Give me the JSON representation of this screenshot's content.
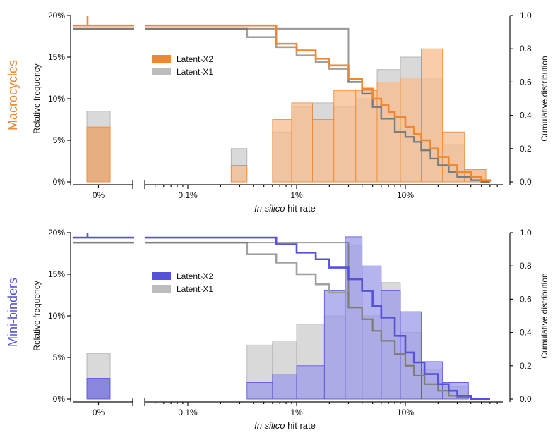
{
  "chart_data": [
    {
      "type": "bar",
      "panel": "top",
      "side_label": "Macrocycles",
      "accent": "#F0862E",
      "accent_fill": "#E8A878",
      "accent_fill_light": "#F7BC8C",
      "ylabel_left": "Relative frequency",
      "ylabel_right": "Cumulative distribution",
      "xlabel_italic": "In silico",
      "xlabel_rest": " hit rate",
      "y_left_ticks": [
        "0%",
        "5%",
        "10%",
        "15%",
        "20%"
      ],
      "y_right_ticks": [
        "0.0",
        "0.2",
        "0.4",
        "0.6",
        "0.8",
        "1.0"
      ],
      "x_ticks": [
        "0.1%",
        "1%",
        "10%"
      ],
      "x_zero_label": "0%",
      "ylim": [
        0,
        20
      ],
      "legend": [
        "Latent-X2",
        "Latent-X1"
      ],
      "zero_bin": {
        "x2": 6.6,
        "x1": 8.5
      },
      "x2_hist": [
        [
          0.25,
          0.35,
          2.0
        ],
        [
          0.6,
          0.9,
          7.5
        ],
        [
          0.9,
          1.4,
          9.5
        ],
        [
          1.4,
          2.2,
          7.5
        ],
        [
          2.2,
          3.5,
          11.0
        ],
        [
          3.5,
          5.5,
          11.0
        ],
        [
          5.5,
          9.0,
          12.0
        ],
        [
          9.0,
          14.0,
          12.5
        ],
        [
          14.0,
          22.0,
          16.0
        ],
        [
          22.0,
          35.0,
          6.0
        ],
        [
          35.0,
          55.0,
          1.5
        ]
      ],
      "x1_hist": [
        [
          0.25,
          0.35,
          4.0
        ],
        [
          0.6,
          0.9,
          6.0
        ],
        [
          0.9,
          1.4,
          9.0
        ],
        [
          1.4,
          2.2,
          9.5
        ],
        [
          2.2,
          3.5,
          9.0
        ],
        [
          3.5,
          5.5,
          10.0
        ],
        [
          5.5,
          9.0,
          13.5
        ],
        [
          9.0,
          14.0,
          15.0
        ],
        [
          14.0,
          22.0,
          12.5
        ],
        [
          22.0,
          35.0,
          4.5
        ],
        [
          35.0,
          55.0,
          1.5
        ]
      ],
      "x2_cdf_start": 0.94,
      "x2_cdf": [
        [
          0.03,
          0.94
        ],
        [
          0.35,
          0.94
        ],
        [
          0.65,
          0.83
        ],
        [
          1.0,
          0.79
        ],
        [
          1.5,
          0.74
        ],
        [
          2.0,
          0.7
        ],
        [
          3.0,
          0.62
        ],
        [
          4.0,
          0.56
        ],
        [
          5.0,
          0.5
        ],
        [
          6.0,
          0.46
        ],
        [
          7.0,
          0.42
        ],
        [
          8.0,
          0.39
        ],
        [
          10.0,
          0.33
        ],
        [
          12.0,
          0.29
        ],
        [
          14.0,
          0.25
        ],
        [
          17.0,
          0.2
        ],
        [
          20.0,
          0.15
        ],
        [
          25.0,
          0.1
        ],
        [
          30.0,
          0.06
        ],
        [
          40.0,
          0.03
        ],
        [
          50.0,
          0.01
        ],
        [
          60.0,
          0.0
        ]
      ],
      "x1_cdf_start": 0.92,
      "x1_cdf": [
        [
          0.03,
          0.92
        ],
        [
          0.35,
          0.87
        ],
        [
          0.65,
          0.81
        ],
        [
          1.0,
          0.76
        ],
        [
          1.5,
          0.72
        ],
        [
          2.0,
          0.68
        ],
        [
          3.0,
          0.6
        ],
        [
          4.0,
          0.53
        ],
        [
          5.0,
          0.45
        ],
        [
          6.0,
          0.38
        ],
        [
          8.0,
          0.3
        ],
        [
          10.0,
          0.27
        ],
        [
          12.0,
          0.24
        ],
        [
          14.0,
          0.19
        ],
        [
          17.0,
          0.14
        ],
        [
          20.0,
          0.1
        ],
        [
          25.0,
          0.06
        ],
        [
          30.0,
          0.03
        ],
        [
          40.0,
          0.01
        ],
        [
          50.0,
          0.0
        ]
      ]
    },
    {
      "type": "bar",
      "panel": "bottom",
      "side_label": "Mini-binders",
      "accent": "#5552D8",
      "accent_fill": "#7F7CDD",
      "accent_fill_light": "#9E9BE8",
      "ylabel_left": "Relative frequency",
      "ylabel_right": "Cumulative distribution",
      "xlabel_italic": "In silico",
      "xlabel_rest": " hit rate",
      "y_left_ticks": [
        "0%",
        "5%",
        "10%",
        "15%",
        "20%"
      ],
      "y_right_ticks": [
        "0.0",
        "0.2",
        "0.4",
        "0.6",
        "0.8",
        "1.0"
      ],
      "x_ticks": [
        "0.1%",
        "1%",
        "10%"
      ],
      "x_zero_label": "0%",
      "ylim": [
        0,
        20
      ],
      "legend": [
        "Latent-X2",
        "Latent-X1"
      ],
      "zero_bin": {
        "x2": 2.5,
        "x1": 5.5
      },
      "x2_hist": [
        [
          0.35,
          0.6,
          2.0
        ],
        [
          0.6,
          1.0,
          3.0
        ],
        [
          1.0,
          1.8,
          4.0
        ],
        [
          1.8,
          2.8,
          13.0
        ],
        [
          2.8,
          4.0,
          19.5
        ],
        [
          4.0,
          6.0,
          16.0
        ],
        [
          6.0,
          9.0,
          13.0
        ],
        [
          9.0,
          14.0,
          10.5
        ],
        [
          14.0,
          22.0,
          4.5
        ],
        [
          22.0,
          38.0,
          2.0
        ]
      ],
      "x1_hist": [
        [
          0.35,
          0.6,
          6.5
        ],
        [
          0.6,
          1.0,
          7.0
        ],
        [
          1.0,
          1.8,
          9.0
        ],
        [
          1.8,
          2.8,
          10.0
        ],
        [
          2.8,
          4.0,
          18.5
        ],
        [
          4.0,
          6.0,
          10.0
        ],
        [
          6.0,
          9.0,
          14.0
        ],
        [
          9.0,
          14.0,
          8.0
        ],
        [
          14.0,
          22.0,
          3.5
        ],
        [
          22.0,
          38.0,
          1.5
        ]
      ],
      "x2_cdf_start": 0.97,
      "x2_cdf": [
        [
          0.03,
          0.97
        ],
        [
          0.35,
          0.97
        ],
        [
          0.65,
          0.93
        ],
        [
          1.0,
          0.88
        ],
        [
          1.5,
          0.84
        ],
        [
          2.0,
          0.79
        ],
        [
          3.0,
          0.72
        ],
        [
          4.0,
          0.65
        ],
        [
          5.0,
          0.56
        ],
        [
          6.0,
          0.49
        ],
        [
          8.0,
          0.38
        ],
        [
          10.0,
          0.28
        ],
        [
          12.0,
          0.22
        ],
        [
          15.0,
          0.15
        ],
        [
          20.0,
          0.09
        ],
        [
          25.0,
          0.05
        ],
        [
          30.0,
          0.02
        ],
        [
          40.0,
          0.0
        ]
      ],
      "x1_cdf_start": 0.94,
      "x1_cdf": [
        [
          0.03,
          0.94
        ],
        [
          0.35,
          0.87
        ],
        [
          0.65,
          0.82
        ],
        [
          1.0,
          0.75
        ],
        [
          1.5,
          0.69
        ],
        [
          2.0,
          0.64
        ],
        [
          3.0,
          0.55
        ],
        [
          4.0,
          0.48
        ],
        [
          5.0,
          0.41
        ],
        [
          6.0,
          0.35
        ],
        [
          8.0,
          0.27
        ],
        [
          10.0,
          0.2
        ],
        [
          12.0,
          0.14
        ],
        [
          15.0,
          0.09
        ],
        [
          20.0,
          0.05
        ],
        [
          25.0,
          0.02
        ],
        [
          30.0,
          0.01
        ],
        [
          40.0,
          0.0
        ]
      ]
    }
  ],
  "colors": {
    "gray_fill": "#C9C9C9",
    "gray_line_light": "#A0A0A0",
    "gray_line_dark": "#6A6A6A"
  }
}
